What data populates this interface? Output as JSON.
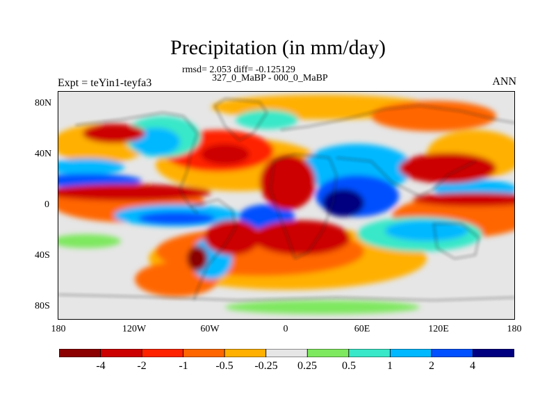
{
  "title": "Precipitation (in mm/day)",
  "stats": "rmsd= 2.053 diff= -0.125129",
  "comparison": "327_0_MaBP - 000_0_MaBP",
  "experiment": "Expt = teYin1-teyfa3",
  "season": "ANN",
  "y_ticks": [
    "80N",
    "40N",
    "0",
    "40S",
    "80S"
  ],
  "x_ticks": [
    "180",
    "120W",
    "60W",
    "0",
    "60E",
    "120E",
    "180"
  ],
  "colorbar": {
    "labels": [
      "-4",
      "-2",
      "-1",
      "-0.5",
      "-0.25",
      "0.25",
      "0.5",
      "1",
      "2",
      "4"
    ],
    "colors": [
      "#8b0000",
      "#cc0000",
      "#ff2200",
      "#ff6600",
      "#ffb000",
      "#e6e6e6",
      "#7ee85e",
      "#38e8c8",
      "#00b8ff",
      "#0050ff",
      "#000080"
    ]
  }
}
